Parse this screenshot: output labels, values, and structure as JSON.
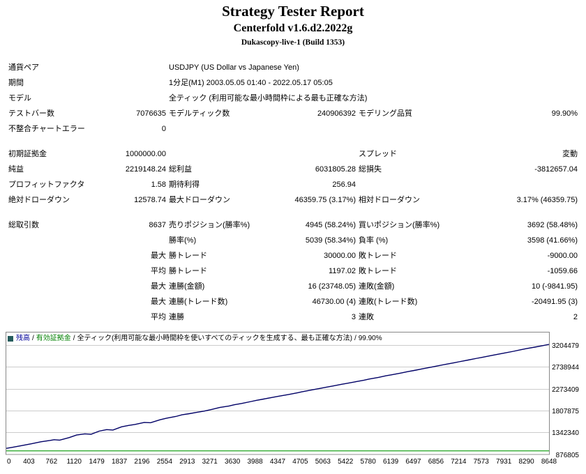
{
  "header": {
    "title": "Strategy Tester Report",
    "subtitle": "Centerfold v1.6.d2.2022g",
    "build": "Dukascopy-live-1 (Build 1353)"
  },
  "report": {
    "rows": [
      {
        "cells": [
          {
            "t": "通貨ペア",
            "s": 2,
            "a": "l"
          },
          {
            "t": "USDJPY (US Dollar vs Japanese Yen)",
            "s": 4,
            "a": "l"
          }
        ]
      },
      {
        "cells": [
          {
            "t": "期間",
            "s": 2,
            "a": "l"
          },
          {
            "t": "1分足(M1) 2003.05.05 01:40 - 2022.05.17 05:05",
            "s": 4,
            "a": "l"
          }
        ]
      },
      {
        "cells": [
          {
            "t": "モデル",
            "s": 2,
            "a": "l"
          },
          {
            "t": "全ティック (利用可能な最小時間枠による最も正確な方法)",
            "s": 4,
            "a": "l"
          }
        ]
      },
      {
        "cells": [
          {
            "t": "テストバー数",
            "a": "l"
          },
          {
            "t": "7076635",
            "a": "r"
          },
          {
            "t": "モデルティック数",
            "a": "l"
          },
          {
            "t": "240906392",
            "a": "r"
          },
          {
            "t": "モデリング品質",
            "a": "l"
          },
          {
            "t": "99.90%",
            "a": "r"
          }
        ]
      },
      {
        "cells": [
          {
            "t": "不整合チャートエラー",
            "a": "l"
          },
          {
            "t": "0",
            "a": "r"
          },
          {
            "t": "",
            "s": 4,
            "a": "l"
          }
        ]
      },
      {
        "spacer": true
      },
      {
        "cells": [
          {
            "t": "初期証拠金",
            "a": "l"
          },
          {
            "t": "1000000.00",
            "a": "r"
          },
          {
            "t": "",
            "a": "l"
          },
          {
            "t": "",
            "a": "r"
          },
          {
            "t": "スプレッド",
            "a": "l"
          },
          {
            "t": "変動",
            "a": "r"
          }
        ]
      },
      {
        "cells": [
          {
            "t": "純益",
            "a": "l"
          },
          {
            "t": "2219148.24",
            "a": "r"
          },
          {
            "t": "総利益",
            "a": "l"
          },
          {
            "t": "6031805.28",
            "a": "r"
          },
          {
            "t": "総損失",
            "a": "l"
          },
          {
            "t": "-3812657.04",
            "a": "r"
          }
        ]
      },
      {
        "cells": [
          {
            "t": "プロフィットファクタ",
            "a": "l"
          },
          {
            "t": "1.58",
            "a": "r"
          },
          {
            "t": "期待利得",
            "a": "l"
          },
          {
            "t": "256.94",
            "a": "r"
          },
          {
            "t": "",
            "a": "l"
          },
          {
            "t": "",
            "a": "r"
          }
        ]
      },
      {
        "cells": [
          {
            "t": "絶対ドローダウン",
            "a": "l"
          },
          {
            "t": "12578.74",
            "a": "r"
          },
          {
            "t": "最大ドローダウン",
            "a": "l"
          },
          {
            "t": "46359.75 (3.17%)",
            "a": "r"
          },
          {
            "t": "相対ドローダウン",
            "a": "l"
          },
          {
            "t": "3.17% (46359.75)",
            "a": "r"
          }
        ]
      },
      {
        "spacer": true
      },
      {
        "cells": [
          {
            "t": "総取引数",
            "a": "l"
          },
          {
            "t": "8637",
            "a": "r"
          },
          {
            "t": "売りポジション(勝率%)",
            "a": "l"
          },
          {
            "t": "4945 (58.24%)",
            "a": "r"
          },
          {
            "t": "買いポジション(勝率%)",
            "a": "l"
          },
          {
            "t": "3692 (58.48%)",
            "a": "r"
          }
        ]
      },
      {
        "cells": [
          {
            "t": "",
            "a": "l"
          },
          {
            "t": "",
            "a": "r"
          },
          {
            "t": "勝率(%)",
            "a": "l"
          },
          {
            "t": "5039 (58.34%)",
            "a": "r"
          },
          {
            "t": "負率 (%)",
            "a": "l"
          },
          {
            "t": "3598 (41.66%)",
            "a": "r"
          }
        ]
      },
      {
        "cells": [
          {
            "t": "",
            "a": "l"
          },
          {
            "t": "最大",
            "a": "r"
          },
          {
            "t": "勝トレード",
            "a": "l"
          },
          {
            "t": "30000.00",
            "a": "r"
          },
          {
            "t": "敗トレード",
            "a": "l"
          },
          {
            "t": "-9000.00",
            "a": "r"
          }
        ]
      },
      {
        "cells": [
          {
            "t": "",
            "a": "l"
          },
          {
            "t": "平均",
            "a": "r"
          },
          {
            "t": "勝トレード",
            "a": "l"
          },
          {
            "t": "1197.02",
            "a": "r"
          },
          {
            "t": "敗トレード",
            "a": "l"
          },
          {
            "t": "-1059.66",
            "a": "r"
          }
        ]
      },
      {
        "cells": [
          {
            "t": "",
            "a": "l"
          },
          {
            "t": "最大",
            "a": "r"
          },
          {
            "t": "連勝(金額)",
            "a": "l"
          },
          {
            "t": "16 (23748.05)",
            "a": "r"
          },
          {
            "t": "連敗(金額)",
            "a": "l"
          },
          {
            "t": "10 (-9841.95)",
            "a": "r"
          }
        ]
      },
      {
        "cells": [
          {
            "t": "",
            "a": "l"
          },
          {
            "t": "最大",
            "a": "r"
          },
          {
            "t": "連勝(トレード数)",
            "a": "l"
          },
          {
            "t": "46730.00 (4)",
            "a": "r"
          },
          {
            "t": "連敗(トレード数)",
            "a": "l"
          },
          {
            "t": "-20491.95 (3)",
            "a": "r"
          }
        ]
      },
      {
        "cells": [
          {
            "t": "",
            "a": "l"
          },
          {
            "t": "平均",
            "a": "r"
          },
          {
            "t": "連勝",
            "a": "l"
          },
          {
            "t": "3",
            "a": "r"
          },
          {
            "t": "連敗",
            "a": "l"
          },
          {
            "t": "2",
            "a": "r"
          }
        ]
      }
    ]
  },
  "chart_data": {
    "type": "line",
    "legend": {
      "marker_color": "#265c5c",
      "separator": "/",
      "items": [
        {
          "text": "残高",
          "color": "#000099"
        },
        {
          "text": "有効証拠金",
          "color": "#008000"
        },
        {
          "text": "全ティック(利用可能な最小時間枠を使いすべてのティックを生成する、最も正確な方法)",
          "color": "#000000"
        },
        {
          "text": "99.90%",
          "color": "#000000"
        }
      ]
    },
    "xlim": [
      0,
      8648
    ],
    "ylim": [
      876805,
      3204479
    ],
    "x_ticks": [
      0,
      403,
      762,
      1120,
      1479,
      1837,
      2196,
      2554,
      2913,
      3271,
      3630,
      3988,
      4347,
      4705,
      5063,
      5422,
      5780,
      6139,
      6497,
      6856,
      7214,
      7573,
      7931,
      8290,
      8648
    ],
    "y_ticks": [
      3204479,
      2738944,
      2273409,
      1807875,
      1342340,
      876805
    ],
    "grid": "horizontal",
    "colors": {
      "balance": "#000066",
      "lots": "#009900",
      "grid": "#cccccc",
      "border": "#888888",
      "plot_bg": "#ffffff"
    },
    "series": [
      {
        "name": "残高",
        "color": "#000066",
        "points": [
          [
            0,
            1000000
          ],
          [
            100,
            1022000
          ],
          [
            250,
            1060000
          ],
          [
            403,
            1098000
          ],
          [
            550,
            1140000
          ],
          [
            700,
            1170000
          ],
          [
            762,
            1185000
          ],
          [
            850,
            1176000
          ],
          [
            1000,
            1230000
          ],
          [
            1120,
            1285000
          ],
          [
            1250,
            1310000
          ],
          [
            1350,
            1301000
          ],
          [
            1479,
            1368000
          ],
          [
            1600,
            1400000
          ],
          [
            1700,
            1391000
          ],
          [
            1837,
            1460000
          ],
          [
            1950,
            1490000
          ],
          [
            2050,
            1510000
          ],
          [
            2196,
            1552000
          ],
          [
            2300,
            1547000
          ],
          [
            2450,
            1610000
          ],
          [
            2554,
            1645000
          ],
          [
            2700,
            1680000
          ],
          [
            2800,
            1715000
          ],
          [
            2913,
            1740000
          ],
          [
            3050,
            1772000
          ],
          [
            3150,
            1795000
          ],
          [
            3271,
            1830000
          ],
          [
            3400,
            1872000
          ],
          [
            3550,
            1905000
          ],
          [
            3630,
            1930000
          ],
          [
            3750,
            1958000
          ],
          [
            3900,
            2000000
          ],
          [
            3988,
            2025000
          ],
          [
            4100,
            2052000
          ],
          [
            4250,
            2090000
          ],
          [
            4347,
            2115000
          ],
          [
            4500,
            2150000
          ],
          [
            4650,
            2188000
          ],
          [
            4705,
            2205000
          ],
          [
            4850,
            2242000
          ],
          [
            5000,
            2280000
          ],
          [
            5063,
            2295000
          ],
          [
            5200,
            2330000
          ],
          [
            5350,
            2368000
          ],
          [
            5422,
            2385000
          ],
          [
            5570,
            2422000
          ],
          [
            5700,
            2455000
          ],
          [
            5780,
            2478000
          ],
          [
            5930,
            2515000
          ],
          [
            6050,
            2548000
          ],
          [
            6139,
            2570000
          ],
          [
            6280,
            2605000
          ],
          [
            6400,
            2638000
          ],
          [
            6497,
            2662000
          ],
          [
            6640,
            2700000
          ],
          [
            6780,
            2735000
          ],
          [
            6856,
            2755000
          ],
          [
            7000,
            2792000
          ],
          [
            7150,
            2830000
          ],
          [
            7214,
            2848000
          ],
          [
            7360,
            2885000
          ],
          [
            7500,
            2922000
          ],
          [
            7573,
            2940000
          ],
          [
            7720,
            2978000
          ],
          [
            7850,
            3012000
          ],
          [
            7931,
            3032000
          ],
          [
            8080,
            3070000
          ],
          [
            8200,
            3105000
          ],
          [
            8290,
            3128000
          ],
          [
            8420,
            3160000
          ],
          [
            8550,
            3192000
          ],
          [
            8648,
            3219148
          ]
        ]
      }
    ],
    "bottom_line": {
      "color": "#009900",
      "points": [
        [
          0,
          0.03
        ],
        [
          8648,
          0.03
        ]
      ]
    }
  }
}
